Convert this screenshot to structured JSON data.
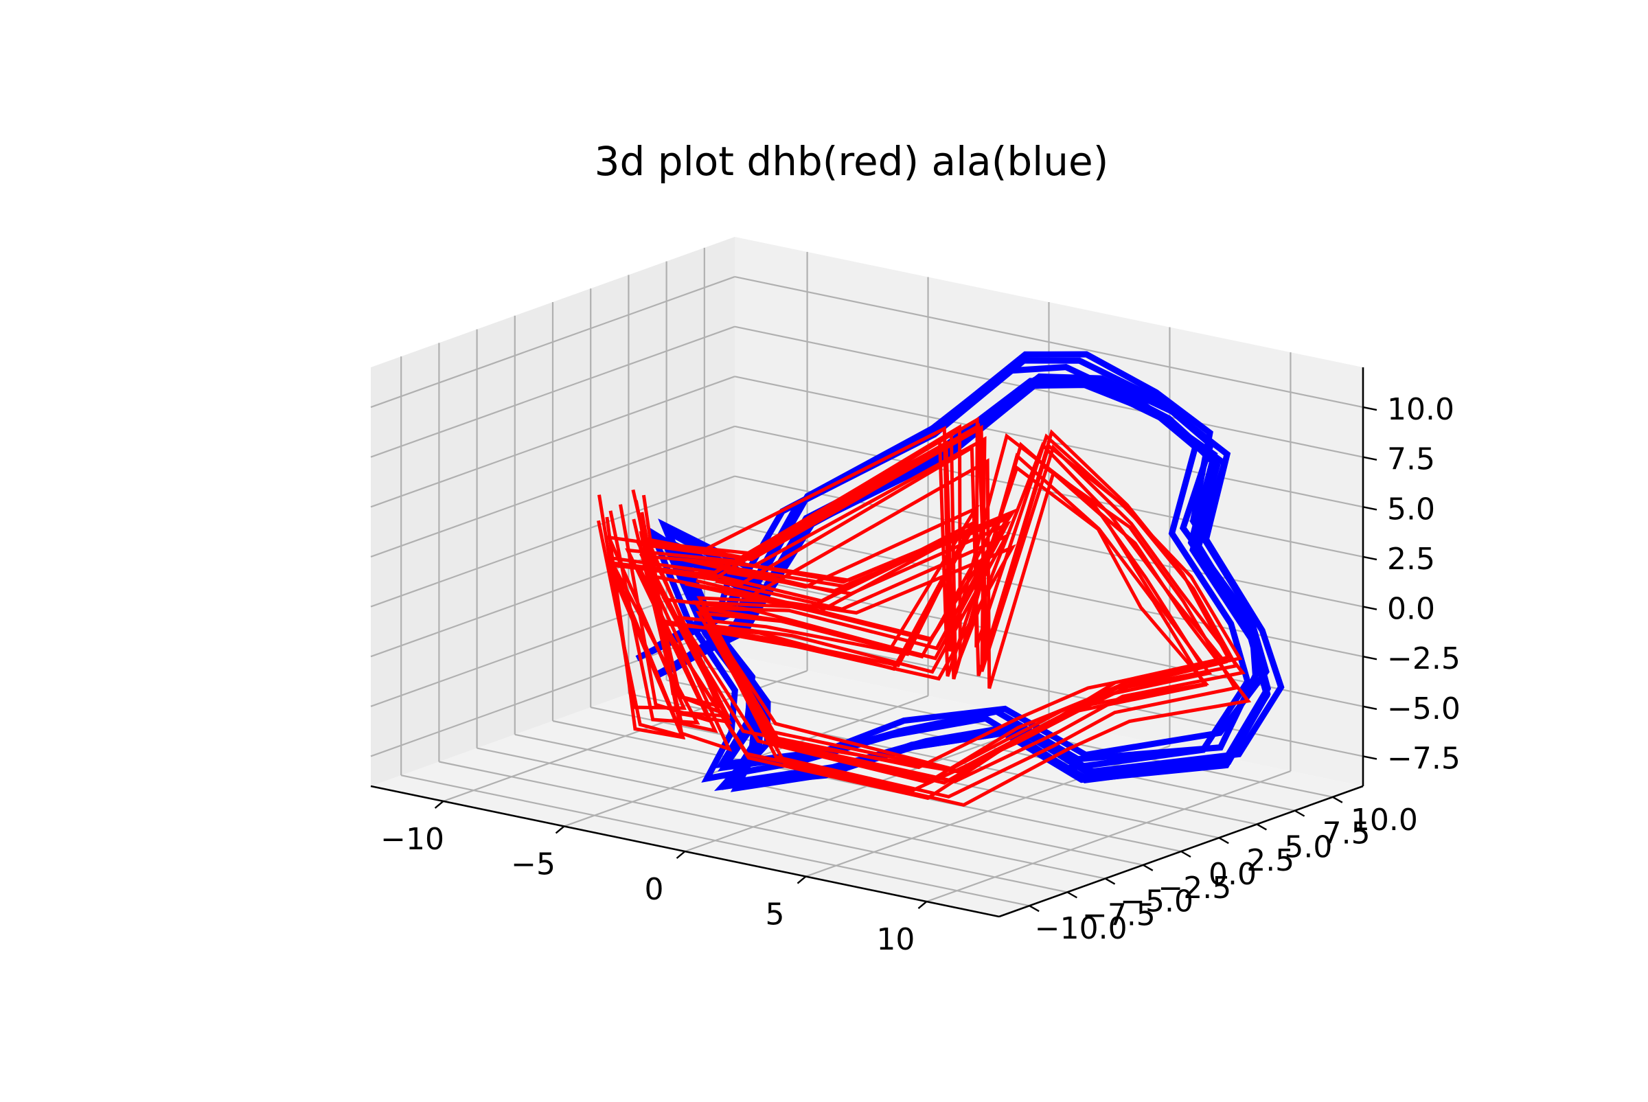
{
  "chart_data": {
    "type": "line3d",
    "title": "3d plot dhb(red) ala(blue)",
    "xlabel": "",
    "ylabel": "",
    "zlabel": "",
    "xlim": [
      -13,
      13
    ],
    "ylim": [
      -12,
      12
    ],
    "zlim": [
      -9,
      12
    ],
    "grid": true,
    "x_ticks": [
      "−10",
      "−5",
      "0",
      "5",
      "10"
    ],
    "x_tick_values": [
      -10,
      -5,
      0,
      5,
      10
    ],
    "y_ticks": [
      "−10.0",
      "−7.5",
      "−5.0",
      "−2.5",
      "0.0",
      "2.5",
      "5.0",
      "7.5",
      "10.0"
    ],
    "y_tick_values": [
      -10,
      -7.5,
      -5,
      -2.5,
      0,
      2.5,
      5,
      7.5,
      10
    ],
    "z_ticks": [
      "−7.5",
      "−5.0",
      "−2.5",
      "0.0",
      "2.5",
      "5.0",
      "7.5",
      "10.0"
    ],
    "z_tick_values": [
      -7.5,
      -5,
      -2.5,
      0,
      2.5,
      5,
      7.5,
      10
    ],
    "series": [
      {
        "color": "#0000ff",
        "copies": 8,
        "jitter": 0.35,
        "points": [
          [
            -6.5,
            2.0,
            -3.0
          ],
          [
            -5.0,
            4.0,
            2.5
          ],
          [
            0.0,
            5.0,
            7.0
          ],
          [
            3.0,
            6.0,
            11.0
          ],
          [
            6.0,
            5.0,
            12.0
          ],
          [
            8.5,
            6.0,
            10.5
          ],
          [
            10.0,
            7.0,
            8.5
          ],
          [
            8.5,
            8.0,
            3.5
          ],
          [
            10.0,
            9.5,
            -1.0
          ],
          [
            11.5,
            8.0,
            -3.0
          ],
          [
            11.0,
            6.0,
            -6.0
          ],
          [
            6.5,
            4.0,
            -7.5
          ],
          [
            4.5,
            2.0,
            -5.0
          ],
          [
            2.5,
            -1.0,
            -5.5
          ],
          [
            0.0,
            -3.0,
            -7.0
          ],
          [
            -3.0,
            -4.5,
            -8.0
          ],
          [
            -1.0,
            -6.0,
            -5.0
          ],
          [
            0.5,
            -8.0,
            -2.0
          ],
          [
            -2.0,
            -7.5,
            1.0
          ],
          [
            -4.5,
            -6.0,
            4.0
          ],
          [
            -3.5,
            -2.0,
            1.0
          ],
          [
            -5.5,
            0.0,
            -2.0
          ],
          [
            -8.0,
            -1.0,
            -4.5
          ]
        ]
      },
      {
        "color": "#ff0000",
        "copies": 11,
        "jitter": 0.5,
        "points": [
          [
            -8.5,
            -2.0,
            3.5
          ],
          [
            -7.5,
            -1.0,
            -7.0
          ],
          [
            -5.0,
            -2.0,
            -6.5
          ],
          [
            -7.0,
            -4.0,
            2.0
          ],
          [
            -4.0,
            -2.0,
            1.5
          ],
          [
            4.0,
            0.5,
            9.5
          ],
          [
            3.5,
            1.5,
            -2.5
          ],
          [
            5.5,
            3.0,
            8.5
          ],
          [
            7.5,
            5.0,
            5.0
          ],
          [
            8.5,
            7.0,
            1.0
          ],
          [
            10.0,
            8.0,
            -3.0
          ],
          [
            6.5,
            6.0,
            -4.5
          ],
          [
            5.0,
            4.0,
            -6.0
          ],
          [
            4.0,
            -1.0,
            -7.5
          ],
          [
            -2.0,
            -3.0,
            -6.5
          ],
          [
            -5.5,
            -2.5,
            -1.0
          ],
          [
            -4.0,
            1.0,
            -2.0
          ],
          [
            0.0,
            4.0,
            -3.5
          ],
          [
            2.5,
            5.0,
            3.5
          ],
          [
            -3.0,
            3.0,
            -1.0
          ],
          [
            -6.5,
            0.5,
            0.0
          ]
        ]
      }
    ]
  }
}
